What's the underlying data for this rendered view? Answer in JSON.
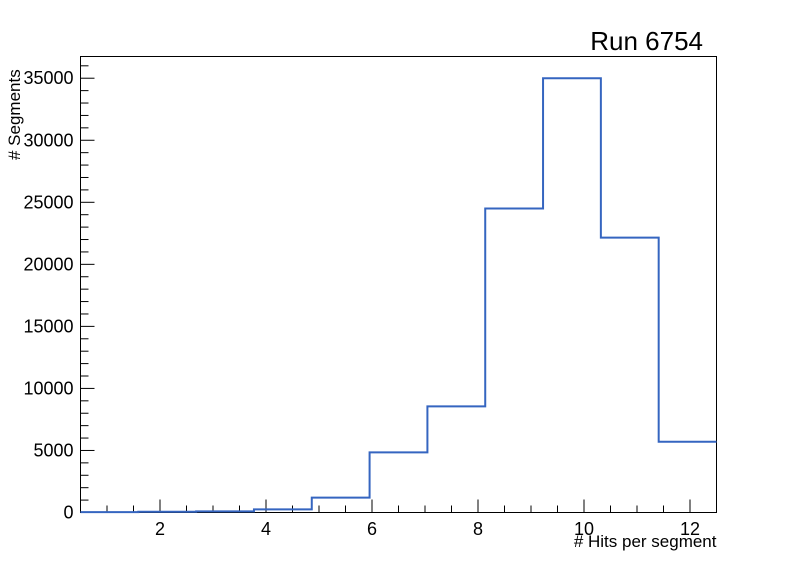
{
  "window": {
    "background_color": "#ffffff"
  },
  "chart_data": {
    "type": "step-histogram",
    "title": "Run 6754",
    "xlabel": "# Hits per segment",
    "ylabel": "# Segments",
    "xlim": [
      0.5,
      12.5
    ],
    "ylim": [
      0,
      36750
    ],
    "x_major_ticks": [
      2,
      4,
      6,
      8,
      10,
      12
    ],
    "x_major_tick_labels": [
      "2",
      "4",
      "6",
      "8",
      "10",
      "12"
    ],
    "x_minor_tick_step": 0.5,
    "y_major_ticks": [
      0,
      5000,
      10000,
      15000,
      20000,
      25000,
      30000,
      35000
    ],
    "y_major_tick_labels": [
      "0",
      "5000",
      "10000",
      "15000",
      "20000",
      "25000",
      "30000",
      "35000"
    ],
    "y_minor_tick_step": 1000,
    "bin_edges": [
      0.5,
      1.5909,
      2.6818,
      3.7727,
      4.8636,
      5.9545,
      7.0455,
      8.1364,
      9.2273,
      10.3182,
      11.4091,
      12.5
    ],
    "counts": [
      30,
      60,
      90,
      250,
      1200,
      4850,
      8550,
      24500,
      35000,
      22150,
      5700
    ],
    "line_color": "#3565c0",
    "frame_color": "#000000",
    "grid": false,
    "legend": null
  }
}
